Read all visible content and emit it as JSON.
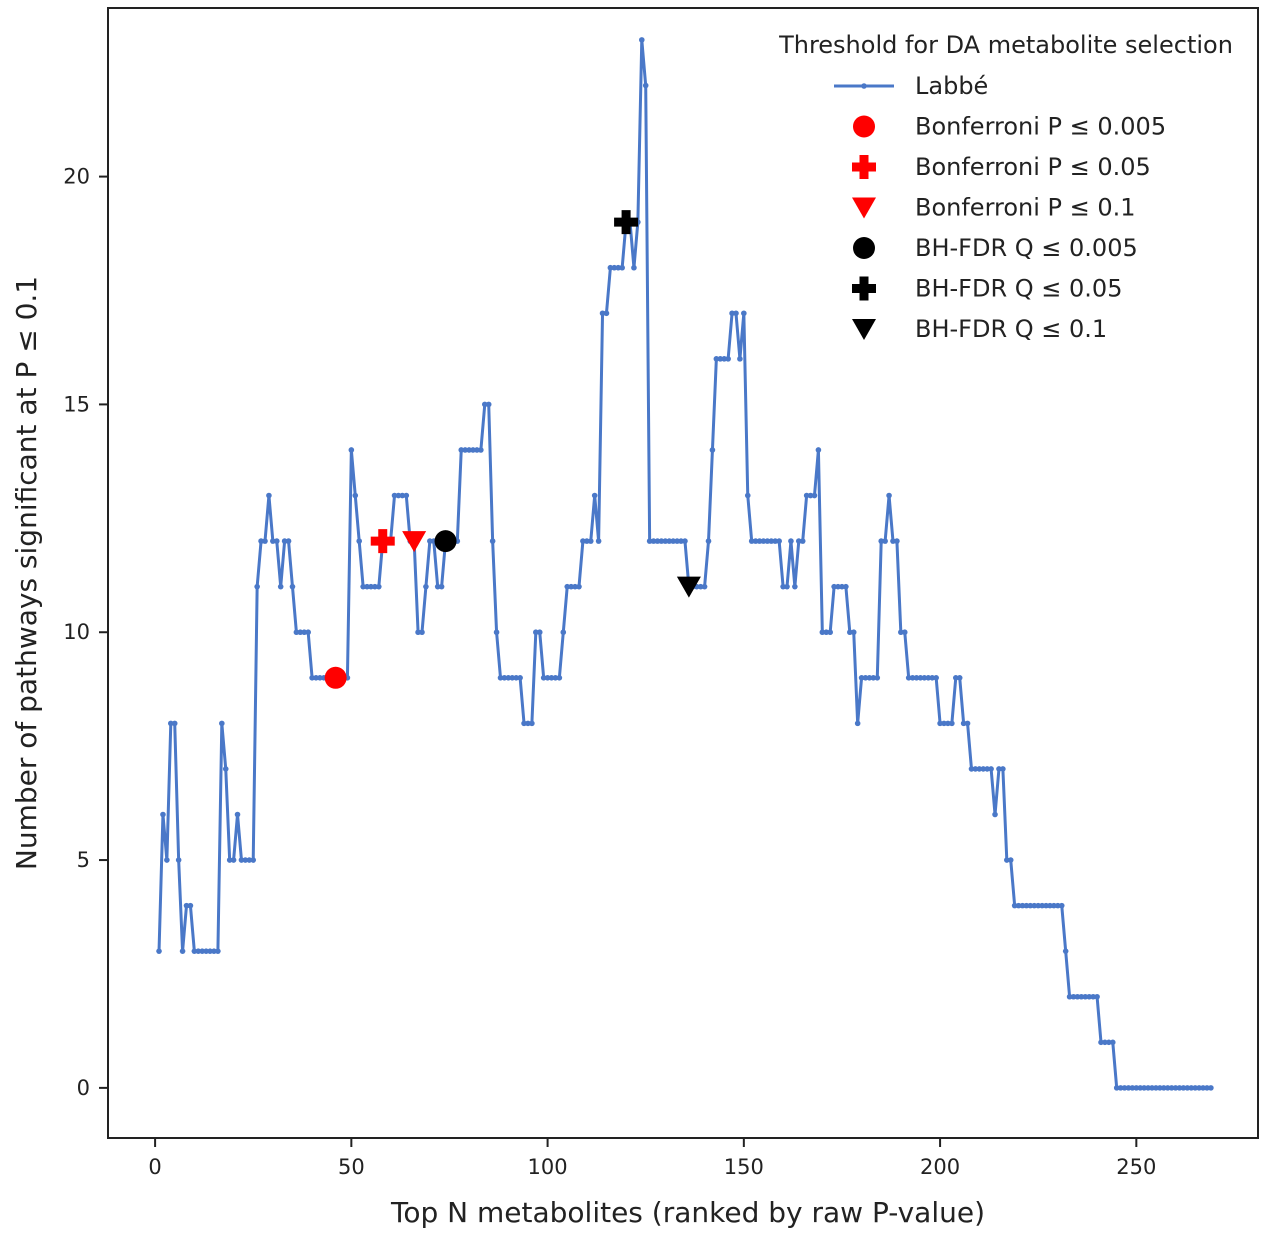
{
  "chart_data": {
    "type": "line",
    "xlabel": "Top N metabolites (ranked by raw P-value)",
    "ylabel": "Number of pathways significant at P ≤ 0.1",
    "xlim": [
      -12,
      281
    ],
    "ylim": [
      -1.1,
      23.7
    ],
    "xticks": [
      0,
      50,
      100,
      150,
      200,
      250
    ],
    "yticks": [
      0,
      5,
      10,
      15,
      20
    ],
    "grid": false,
    "legend": {
      "title": "Threshold for DA metabolite selection",
      "placement": "top-right"
    },
    "series": [
      {
        "name": "Labbé",
        "color": "#4a78c8",
        "points": [
          [
            1,
            3
          ],
          [
            2,
            6
          ],
          [
            3,
            5
          ],
          [
            4,
            8
          ],
          [
            5,
            8
          ],
          [
            6,
            5
          ],
          [
            7,
            3
          ],
          [
            8,
            4
          ],
          [
            9,
            4
          ],
          [
            10,
            3
          ],
          [
            11,
            3
          ],
          [
            12,
            3
          ],
          [
            13,
            3
          ],
          [
            14,
            3
          ],
          [
            15,
            3
          ],
          [
            16,
            3
          ],
          [
            17,
            8
          ],
          [
            18,
            7
          ],
          [
            19,
            5
          ],
          [
            20,
            5
          ],
          [
            21,
            6
          ],
          [
            22,
            5
          ],
          [
            23,
            5
          ],
          [
            24,
            5
          ],
          [
            25,
            5
          ],
          [
            26,
            11
          ],
          [
            27,
            12
          ],
          [
            28,
            12
          ],
          [
            29,
            13
          ],
          [
            30,
            12
          ],
          [
            31,
            12
          ],
          [
            32,
            11
          ],
          [
            33,
            12
          ],
          [
            34,
            12
          ],
          [
            35,
            11
          ],
          [
            36,
            10
          ],
          [
            37,
            10
          ],
          [
            38,
            10
          ],
          [
            39,
            10
          ],
          [
            40,
            9
          ],
          [
            41,
            9
          ],
          [
            42,
            9
          ],
          [
            43,
            9
          ],
          [
            44,
            9
          ],
          [
            45,
            9
          ],
          [
            46,
            9
          ],
          [
            47,
            9
          ],
          [
            48,
            9
          ],
          [
            49,
            9
          ],
          [
            50,
            14
          ],
          [
            51,
            13
          ],
          [
            52,
            12
          ],
          [
            53,
            11
          ],
          [
            54,
            11
          ],
          [
            55,
            11
          ],
          [
            56,
            11
          ],
          [
            57,
            11
          ],
          [
            58,
            12
          ],
          [
            59,
            12
          ],
          [
            60,
            12
          ],
          [
            61,
            13
          ],
          [
            62,
            13
          ],
          [
            63,
            13
          ],
          [
            64,
            13
          ],
          [
            65,
            12
          ],
          [
            66,
            12
          ],
          [
            67,
            10
          ],
          [
            68,
            10
          ],
          [
            69,
            11
          ],
          [
            70,
            12
          ],
          [
            71,
            12
          ],
          [
            72,
            11
          ],
          [
            73,
            11
          ],
          [
            74,
            12
          ],
          [
            75,
            12
          ],
          [
            76,
            12
          ],
          [
            77,
            12
          ],
          [
            78,
            14
          ],
          [
            79,
            14
          ],
          [
            80,
            14
          ],
          [
            81,
            14
          ],
          [
            82,
            14
          ],
          [
            83,
            14
          ],
          [
            84,
            15
          ],
          [
            85,
            15
          ],
          [
            86,
            12
          ],
          [
            87,
            10
          ],
          [
            88,
            9
          ],
          [
            89,
            9
          ],
          [
            90,
            9
          ],
          [
            91,
            9
          ],
          [
            92,
            9
          ],
          [
            93,
            9
          ],
          [
            94,
            8
          ],
          [
            95,
            8
          ],
          [
            96,
            8
          ],
          [
            97,
            10
          ],
          [
            98,
            10
          ],
          [
            99,
            9
          ],
          [
            100,
            9
          ],
          [
            101,
            9
          ],
          [
            102,
            9
          ],
          [
            103,
            9
          ],
          [
            104,
            10
          ],
          [
            105,
            11
          ],
          [
            106,
            11
          ],
          [
            107,
            11
          ],
          [
            108,
            11
          ],
          [
            109,
            12
          ],
          [
            110,
            12
          ],
          [
            111,
            12
          ],
          [
            112,
            13
          ],
          [
            113,
            12
          ],
          [
            114,
            17
          ],
          [
            115,
            17
          ],
          [
            116,
            18
          ],
          [
            117,
            18
          ],
          [
            118,
            18
          ],
          [
            119,
            18
          ],
          [
            120,
            19
          ],
          [
            121,
            19
          ],
          [
            122,
            18
          ],
          [
            123,
            19
          ],
          [
            124,
            23
          ],
          [
            125,
            22
          ],
          [
            126,
            12
          ],
          [
            127,
            12
          ],
          [
            128,
            12
          ],
          [
            129,
            12
          ],
          [
            130,
            12
          ],
          [
            131,
            12
          ],
          [
            132,
            12
          ],
          [
            133,
            12
          ],
          [
            134,
            12
          ],
          [
            135,
            12
          ],
          [
            136,
            11
          ],
          [
            137,
            11
          ],
          [
            138,
            11
          ],
          [
            139,
            11
          ],
          [
            140,
            11
          ],
          [
            141,
            12
          ],
          [
            142,
            14
          ],
          [
            143,
            16
          ],
          [
            144,
            16
          ],
          [
            145,
            16
          ],
          [
            146,
            16
          ],
          [
            147,
            17
          ],
          [
            148,
            17
          ],
          [
            149,
            16
          ],
          [
            150,
            17
          ],
          [
            151,
            13
          ],
          [
            152,
            12
          ],
          [
            153,
            12
          ],
          [
            154,
            12
          ],
          [
            155,
            12
          ],
          [
            156,
            12
          ],
          [
            157,
            12
          ],
          [
            158,
            12
          ],
          [
            159,
            12
          ],
          [
            160,
            11
          ],
          [
            161,
            11
          ],
          [
            162,
            12
          ],
          [
            163,
            11
          ],
          [
            164,
            12
          ],
          [
            165,
            12
          ],
          [
            166,
            13
          ],
          [
            167,
            13
          ],
          [
            168,
            13
          ],
          [
            169,
            14
          ],
          [
            170,
            10
          ],
          [
            171,
            10
          ],
          [
            172,
            10
          ],
          [
            173,
            11
          ],
          [
            174,
            11
          ],
          [
            175,
            11
          ],
          [
            176,
            11
          ],
          [
            177,
            10
          ],
          [
            178,
            10
          ],
          [
            179,
            8
          ],
          [
            180,
            9
          ],
          [
            181,
            9
          ],
          [
            182,
            9
          ],
          [
            183,
            9
          ],
          [
            184,
            9
          ],
          [
            185,
            12
          ],
          [
            186,
            12
          ],
          [
            187,
            13
          ],
          [
            188,
            12
          ],
          [
            189,
            12
          ],
          [
            190,
            10
          ],
          [
            191,
            10
          ],
          [
            192,
            9
          ],
          [
            193,
            9
          ],
          [
            194,
            9
          ],
          [
            195,
            9
          ],
          [
            196,
            9
          ],
          [
            197,
            9
          ],
          [
            198,
            9
          ],
          [
            199,
            9
          ],
          [
            200,
            8
          ],
          [
            201,
            8
          ],
          [
            202,
            8
          ],
          [
            203,
            8
          ],
          [
            204,
            9
          ],
          [
            205,
            9
          ],
          [
            206,
            8
          ],
          [
            207,
            8
          ],
          [
            208,
            7
          ],
          [
            209,
            7
          ],
          [
            210,
            7
          ],
          [
            211,
            7
          ],
          [
            212,
            7
          ],
          [
            213,
            7
          ],
          [
            214,
            6
          ],
          [
            215,
            7
          ],
          [
            216,
            7
          ],
          [
            217,
            5
          ],
          [
            218,
            5
          ],
          [
            219,
            4
          ],
          [
            220,
            4
          ],
          [
            221,
            4
          ],
          [
            222,
            4
          ],
          [
            223,
            4
          ],
          [
            224,
            4
          ],
          [
            225,
            4
          ],
          [
            226,
            4
          ],
          [
            227,
            4
          ],
          [
            228,
            4
          ],
          [
            229,
            4
          ],
          [
            230,
            4
          ],
          [
            231,
            4
          ],
          [
            232,
            3
          ],
          [
            233,
            2
          ],
          [
            234,
            2
          ],
          [
            235,
            2
          ],
          [
            236,
            2
          ],
          [
            237,
            2
          ],
          [
            238,
            2
          ],
          [
            239,
            2
          ],
          [
            240,
            2
          ],
          [
            241,
            1
          ],
          [
            242,
            1
          ],
          [
            243,
            1
          ],
          [
            244,
            1
          ],
          [
            245,
            0
          ],
          [
            246,
            0
          ],
          [
            247,
            0
          ],
          [
            248,
            0
          ],
          [
            249,
            0
          ],
          [
            250,
            0
          ],
          [
            251,
            0
          ],
          [
            252,
            0
          ],
          [
            253,
            0
          ],
          [
            254,
            0
          ],
          [
            255,
            0
          ],
          [
            256,
            0
          ],
          [
            257,
            0
          ],
          [
            258,
            0
          ],
          [
            259,
            0
          ],
          [
            260,
            0
          ],
          [
            261,
            0
          ],
          [
            262,
            0
          ],
          [
            263,
            0
          ],
          [
            264,
            0
          ],
          [
            265,
            0
          ],
          [
            266,
            0
          ],
          [
            267,
            0
          ],
          [
            268,
            0
          ],
          [
            269,
            0
          ]
        ]
      }
    ],
    "markers": [
      {
        "name": "Bonferroni P ≤ 0.005",
        "shape": "circle",
        "color": "#ff0000",
        "x": 46,
        "y": 9
      },
      {
        "name": "Bonferroni P ≤ 0.05",
        "shape": "plus",
        "color": "#ff0000",
        "x": 58,
        "y": 12
      },
      {
        "name": "Bonferroni P ≤ 0.1",
        "shape": "triangle-down",
        "color": "#ff0000",
        "x": 66,
        "y": 12
      },
      {
        "name": "BH-FDR Q ≤ 0.005",
        "shape": "circle",
        "color": "#000000",
        "x": 74,
        "y": 12
      },
      {
        "name": "BH-FDR Q ≤ 0.05",
        "shape": "plus",
        "color": "#000000",
        "x": 120,
        "y": 19
      },
      {
        "name": "BH-FDR Q ≤ 0.1",
        "shape": "triangle-down",
        "color": "#000000",
        "x": 136,
        "y": 11
      }
    ]
  }
}
